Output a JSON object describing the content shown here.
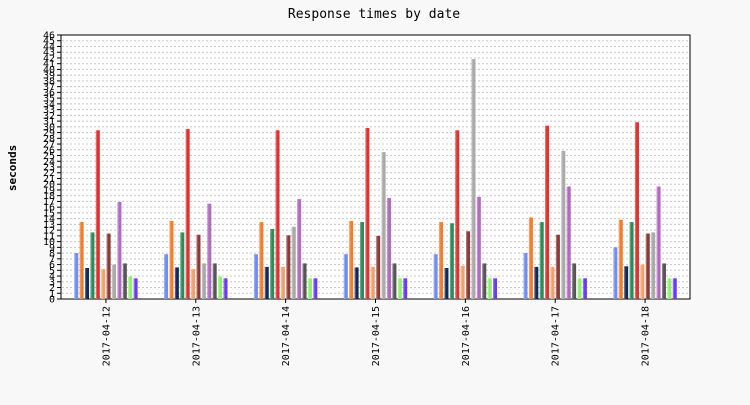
{
  "chart_data": {
    "type": "bar",
    "title": "Response times by date",
    "xlabel": "",
    "ylabel": "seconds",
    "ylim": [
      0,
      46
    ],
    "y_ticks": [
      0,
      1,
      2,
      3,
      4,
      5,
      6,
      7,
      8,
      9,
      10,
      11,
      12,
      13,
      14,
      15,
      16,
      17,
      18,
      19,
      20,
      21,
      22,
      23,
      24,
      25,
      26,
      27,
      28,
      29,
      30,
      31,
      32,
      33,
      34,
      35,
      36,
      37,
      38,
      39,
      40,
      41,
      42,
      43,
      44,
      45,
      46
    ],
    "grid": true,
    "categories": [
      "2017-04-12",
      "2017-04-13",
      "2017-04-14",
      "2017-04-15",
      "2017-04-16",
      "2017-04-17",
      "2017-04-18"
    ],
    "series": [
      {
        "color": "#6f8fef",
        "values": [
          8.0,
          7.8,
          7.8,
          7.8,
          7.8,
          8.0,
          9.0
        ]
      },
      {
        "color": "#f07e2c",
        "values": [
          13.4,
          13.6,
          13.4,
          13.6,
          13.4,
          14.2,
          13.8
        ]
      },
      {
        "color": "#0f2a5a",
        "values": [
          5.4,
          5.5,
          5.6,
          5.5,
          5.4,
          5.6,
          5.7
        ]
      },
      {
        "color": "#2e8b57",
        "values": [
          11.6,
          11.6,
          12.2,
          13.4,
          13.2,
          13.4,
          13.4
        ]
      },
      {
        "color": "#e03030",
        "values": [
          29.4,
          29.6,
          29.4,
          29.8,
          29.4,
          30.2,
          30.8
        ]
      },
      {
        "color": "#f0a26a",
        "values": [
          5.2,
          5.2,
          5.6,
          5.6,
          5.8,
          5.6,
          6.0
        ]
      },
      {
        "color": "#8b3a3a",
        "values": [
          11.4,
          11.2,
          11.1,
          11.0,
          11.8,
          11.2,
          11.4
        ]
      },
      {
        "color": "#a9a9a9",
        "values": [
          6.0,
          6.2,
          12.6,
          25.6,
          41.8,
          25.8,
          11.6
        ]
      },
      {
        "color": "#b06abf",
        "values": [
          16.9,
          16.6,
          17.4,
          17.6,
          17.8,
          19.6,
          19.6
        ]
      },
      {
        "color": "#555555",
        "values": [
          6.2,
          6.2,
          6.2,
          6.2,
          6.2,
          6.2,
          6.2
        ]
      },
      {
        "color": "#8fef6f",
        "values": [
          3.9,
          3.9,
          3.6,
          3.6,
          3.6,
          3.6,
          3.6
        ]
      },
      {
        "color": "#6a3af0",
        "values": [
          3.6,
          3.6,
          3.6,
          3.6,
          3.6,
          3.6,
          3.6
        ]
      }
    ]
  }
}
